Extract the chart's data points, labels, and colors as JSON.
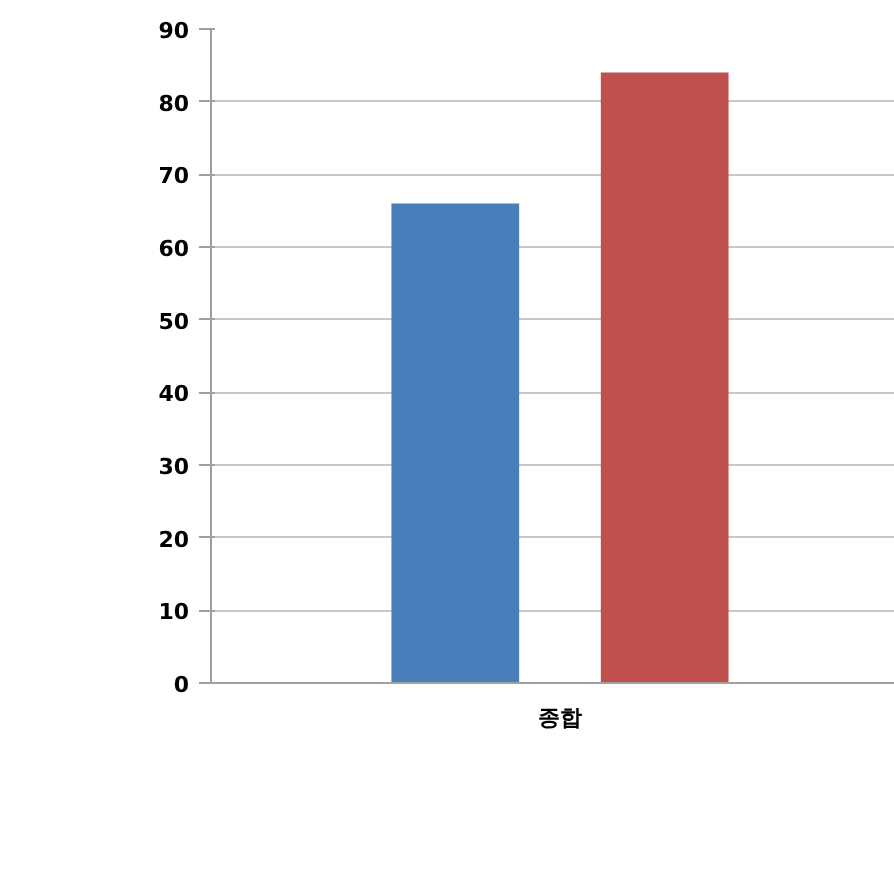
{
  "chart_data": {
    "type": "bar",
    "categories": [
      "종합"
    ],
    "series": [
      {
        "color": "#4a7ebb",
        "values": [
          66
        ]
      },
      {
        "color": "#c0504d",
        "values": [
          84
        ]
      }
    ],
    "ylim": [
      0,
      90
    ],
    "yticks": [
      0,
      10,
      20,
      30,
      40,
      50,
      60,
      70,
      80,
      90
    ],
    "grid": "y"
  }
}
